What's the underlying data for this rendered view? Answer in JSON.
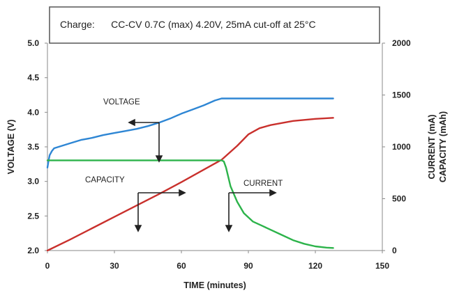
{
  "chart_data": {
    "type": "line",
    "title": "Charge:      CC-CV 0.7C (max) 4.20V, 25mA cut-off at 25°C",
    "xlabel": "TIME (minutes)",
    "ylabel_left": "VOLTAGE (V)",
    "ylabel_right": [
      "CURRENT (mA)",
      "CAPACITY (mAh)"
    ],
    "xlim": [
      0,
      150
    ],
    "ylim_left": [
      2.0,
      5.0
    ],
    "ylim_right": [
      0,
      2000
    ],
    "x_ticks": [
      "0",
      "30",
      "60",
      "90",
      "120",
      "150"
    ],
    "y_left_ticks": [
      "2.0",
      "2.5",
      "3.0",
      "3.5",
      "4.0",
      "4.5",
      "5.0"
    ],
    "y_right_ticks": [
      "0",
      "500",
      "1000",
      "1500",
      "2000"
    ],
    "grid": false,
    "series": [
      {
        "name": "VOLTAGE",
        "axis": "left",
        "color": "#2e86d4",
        "x": [
          0,
          0.5,
          1,
          2,
          3,
          5,
          10,
          15,
          20,
          25,
          30,
          35,
          40,
          45,
          50,
          55,
          60,
          65,
          70,
          75,
          78,
          80,
          90,
          100,
          110,
          120,
          128
        ],
        "y": [
          3.2,
          3.3,
          3.38,
          3.44,
          3.48,
          3.5,
          3.55,
          3.6,
          3.63,
          3.67,
          3.7,
          3.73,
          3.76,
          3.8,
          3.85,
          3.91,
          3.98,
          4.04,
          4.1,
          4.17,
          4.2,
          4.2,
          4.2,
          4.2,
          4.2,
          4.2,
          4.2
        ]
      },
      {
        "name": "CAPACITY",
        "axis": "right",
        "color": "#c9302c",
        "x": [
          0,
          10,
          20,
          30,
          40,
          50,
          60,
          70,
          78,
          85,
          90,
          95,
          100,
          110,
          120,
          128
        ],
        "y": [
          0,
          105,
          215,
          325,
          435,
          545,
          660,
          780,
          875,
          1010,
          1120,
          1180,
          1210,
          1250,
          1270,
          1280
        ]
      },
      {
        "name": "CURRENT",
        "axis": "right",
        "color": "#2cb34a",
        "x": [
          0,
          10,
          20,
          30,
          40,
          50,
          60,
          70,
          78,
          79,
          80,
          82,
          85,
          88,
          92,
          96,
          100,
          105,
          110,
          115,
          120,
          125,
          128
        ],
        "y": [
          870,
          870,
          870,
          870,
          870,
          870,
          870,
          870,
          870,
          860,
          800,
          620,
          470,
          360,
          280,
          240,
          200,
          150,
          100,
          65,
          40,
          28,
          25
        ]
      }
    ],
    "annotations": [
      {
        "text": "VOLTAGE",
        "x": 45,
        "y_left": 4.15
      },
      {
        "text": "CAPACITY",
        "x": 28,
        "y_left": 3.02
      },
      {
        "text": "CURRENT",
        "x": 89,
        "y_left": 2.97
      }
    ]
  }
}
